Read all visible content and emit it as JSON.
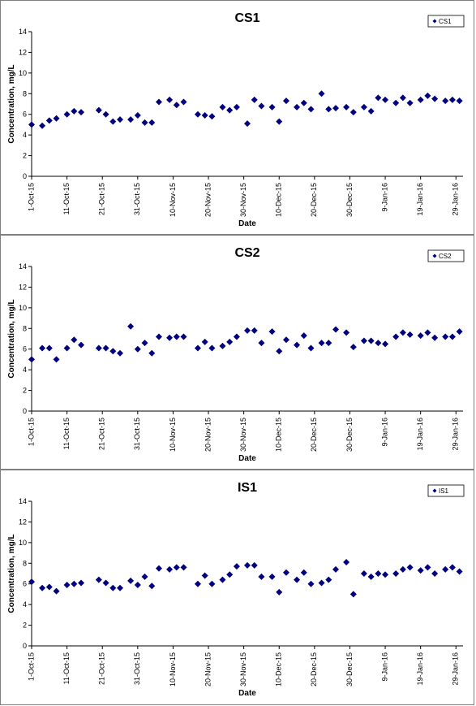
{
  "chart_data": [
    {
      "type": "scatter",
      "title": "CS1",
      "xlabel": "Date",
      "ylabel": "Concentration, mg/L",
      "ylim": [
        0,
        14
      ],
      "yticks": [
        0,
        2,
        4,
        6,
        8,
        10,
        12,
        14
      ],
      "xlim": [
        "2015-10-01",
        "2016-01-31"
      ],
      "xtick_labels": [
        "1-Oct-15",
        "11-Oct-15",
        "21-Oct-15",
        "31-Oct-15",
        "10-Nov-15",
        "20-Nov-15",
        "30-Nov-15",
        "10-Dec-15",
        "20-Dec-15",
        "30-Dec-15",
        "9-Jan-16",
        "19-Jan-16",
        "29-Jan-16"
      ],
      "grid": false,
      "legend": "top-right",
      "marker": "diamond",
      "color": "#000080",
      "series": [
        {
          "name": "CS1",
          "x": [
            "2015-10-01",
            "2015-10-04",
            "2015-10-06",
            "2015-10-08",
            "2015-10-11",
            "2015-10-13",
            "2015-10-15",
            "2015-10-20",
            "2015-10-22",
            "2015-10-24",
            "2015-10-26",
            "2015-10-29",
            "2015-10-31",
            "2015-11-02",
            "2015-11-04",
            "2015-11-06",
            "2015-11-09",
            "2015-11-11",
            "2015-11-13",
            "2015-11-17",
            "2015-11-19",
            "2015-11-21",
            "2015-11-24",
            "2015-11-26",
            "2015-11-28",
            "2015-12-01",
            "2015-12-03",
            "2015-12-05",
            "2015-12-08",
            "2015-12-10",
            "2015-12-12",
            "2015-12-15",
            "2015-12-17",
            "2015-12-19",
            "2015-12-22",
            "2015-12-24",
            "2015-12-26",
            "2015-12-29",
            "2015-12-31",
            "2016-01-03",
            "2016-01-05",
            "2016-01-07",
            "2016-01-09",
            "2016-01-12",
            "2016-01-14",
            "2016-01-16",
            "2016-01-19",
            "2016-01-21",
            "2016-01-23",
            "2016-01-26",
            "2016-01-28",
            "2016-01-30"
          ],
          "y": [
            5.0,
            4.9,
            5.4,
            5.6,
            6.0,
            6.3,
            6.2,
            6.4,
            6.0,
            5.3,
            5.5,
            5.5,
            5.9,
            5.2,
            5.2,
            7.2,
            7.4,
            6.9,
            7.2,
            6.0,
            5.9,
            5.8,
            6.7,
            6.4,
            6.7,
            5.1,
            7.4,
            6.8,
            6.7,
            5.3,
            7.3,
            6.7,
            7.1,
            6.5,
            8.0,
            6.5,
            6.6,
            6.7,
            6.2,
            6.7,
            6.3,
            7.6,
            7.4,
            7.1,
            7.6,
            7.1,
            7.4,
            7.8,
            7.5,
            7.3,
            7.4,
            7.3
          ]
        }
      ]
    },
    {
      "type": "scatter",
      "title": "CS2",
      "xlabel": "Date",
      "ylabel": "Concentration, mg/L",
      "ylim": [
        0,
        14
      ],
      "yticks": [
        0,
        2,
        4,
        6,
        8,
        10,
        12,
        14
      ],
      "xlim": [
        "2015-10-01",
        "2016-01-31"
      ],
      "xtick_labels": [
        "1-Oct-15",
        "11-Oct-15",
        "21-Oct-15",
        "31-Oct-15",
        "10-Nov-15",
        "20-Nov-15",
        "30-Nov-15",
        "10-Dec-15",
        "20-Dec-15",
        "30-Dec-15",
        "9-Jan-16",
        "19-Jan-16",
        "29-Jan-16"
      ],
      "grid": false,
      "legend": "top-right",
      "marker": "diamond",
      "color": "#000080",
      "series": [
        {
          "name": "CS2",
          "x": [
            "2015-10-01",
            "2015-10-04",
            "2015-10-06",
            "2015-10-08",
            "2015-10-11",
            "2015-10-13",
            "2015-10-15",
            "2015-10-20",
            "2015-10-22",
            "2015-10-24",
            "2015-10-26",
            "2015-10-29",
            "2015-10-31",
            "2015-11-02",
            "2015-11-04",
            "2015-11-06",
            "2015-11-09",
            "2015-11-11",
            "2015-11-13",
            "2015-11-17",
            "2015-11-19",
            "2015-11-21",
            "2015-11-24",
            "2015-11-26",
            "2015-11-28",
            "2015-12-01",
            "2015-12-03",
            "2015-12-05",
            "2015-12-08",
            "2015-12-10",
            "2015-12-12",
            "2015-12-15",
            "2015-12-17",
            "2015-12-19",
            "2015-12-22",
            "2015-12-24",
            "2015-12-26",
            "2015-12-29",
            "2015-12-31",
            "2016-01-03",
            "2016-01-05",
            "2016-01-07",
            "2016-01-09",
            "2016-01-12",
            "2016-01-14",
            "2016-01-16",
            "2016-01-19",
            "2016-01-21",
            "2016-01-23",
            "2016-01-26",
            "2016-01-28",
            "2016-01-30"
          ],
          "y": [
            5.0,
            6.1,
            6.1,
            5.0,
            6.1,
            6.9,
            6.4,
            6.1,
            6.1,
            5.8,
            5.6,
            8.2,
            6.0,
            6.6,
            5.6,
            7.2,
            7.1,
            7.2,
            7.2,
            6.1,
            6.7,
            6.1,
            6.3,
            6.7,
            7.2,
            7.8,
            7.8,
            6.6,
            7.7,
            5.8,
            6.9,
            6.4,
            7.3,
            6.1,
            6.6,
            6.6,
            7.9,
            7.6,
            6.2,
            6.8,
            6.8,
            6.6,
            6.5,
            7.2,
            7.6,
            7.4,
            7.3,
            7.6,
            7.1,
            7.2,
            7.2,
            7.7
          ]
        }
      ]
    },
    {
      "type": "scatter",
      "title": "IS1",
      "xlabel": "Date",
      "ylabel": "Concentration, mg/L",
      "ylim": [
        0,
        14
      ],
      "yticks": [
        0,
        2,
        4,
        6,
        8,
        10,
        12,
        14
      ],
      "xlim": [
        "2015-10-01",
        "2016-01-31"
      ],
      "xtick_labels": [
        "1-Oct-15",
        "11-Oct-15",
        "21-Oct-15",
        "31-Oct-15",
        "10-Nov-15",
        "20-Nov-15",
        "30-Nov-15",
        "10-Dec-15",
        "20-Dec-15",
        "30-Dec-15",
        "9-Jan-16",
        "19-Jan-16",
        "29-Jan-16"
      ],
      "grid": false,
      "legend": "top-right",
      "marker": "diamond",
      "color": "#000080",
      "series": [
        {
          "name": "IS1",
          "x": [
            "2015-10-01",
            "2015-10-04",
            "2015-10-06",
            "2015-10-08",
            "2015-10-11",
            "2015-10-13",
            "2015-10-15",
            "2015-10-20",
            "2015-10-22",
            "2015-10-24",
            "2015-10-26",
            "2015-10-29",
            "2015-10-31",
            "2015-11-02",
            "2015-11-04",
            "2015-11-06",
            "2015-11-09",
            "2015-11-11",
            "2015-11-13",
            "2015-11-17",
            "2015-11-19",
            "2015-11-21",
            "2015-11-24",
            "2015-11-26",
            "2015-11-28",
            "2015-12-01",
            "2015-12-03",
            "2015-12-05",
            "2015-12-08",
            "2015-12-10",
            "2015-12-12",
            "2015-12-15",
            "2015-12-17",
            "2015-12-19",
            "2015-12-22",
            "2015-12-24",
            "2015-12-26",
            "2015-12-29",
            "2015-12-31",
            "2016-01-03",
            "2016-01-05",
            "2016-01-07",
            "2016-01-09",
            "2016-01-12",
            "2016-01-14",
            "2016-01-16",
            "2016-01-19",
            "2016-01-21",
            "2016-01-23",
            "2016-01-26",
            "2016-01-28",
            "2016-01-30"
          ],
          "y": [
            6.2,
            5.6,
            5.7,
            5.3,
            5.9,
            6.0,
            6.1,
            6.4,
            6.1,
            5.6,
            5.6,
            6.3,
            5.9,
            6.7,
            5.8,
            7.5,
            7.4,
            7.6,
            7.6,
            6.0,
            6.8,
            6.0,
            6.4,
            6.9,
            7.7,
            7.8,
            7.8,
            6.7,
            6.7,
            5.2,
            7.1,
            6.4,
            7.1,
            6.0,
            6.1,
            6.4,
            7.4,
            8.1,
            5.0,
            7.0,
            6.7,
            7.0,
            6.9,
            7.0,
            7.4,
            7.6,
            7.3,
            7.6,
            7.0,
            7.4,
            7.6,
            7.2
          ]
        }
      ]
    }
  ]
}
